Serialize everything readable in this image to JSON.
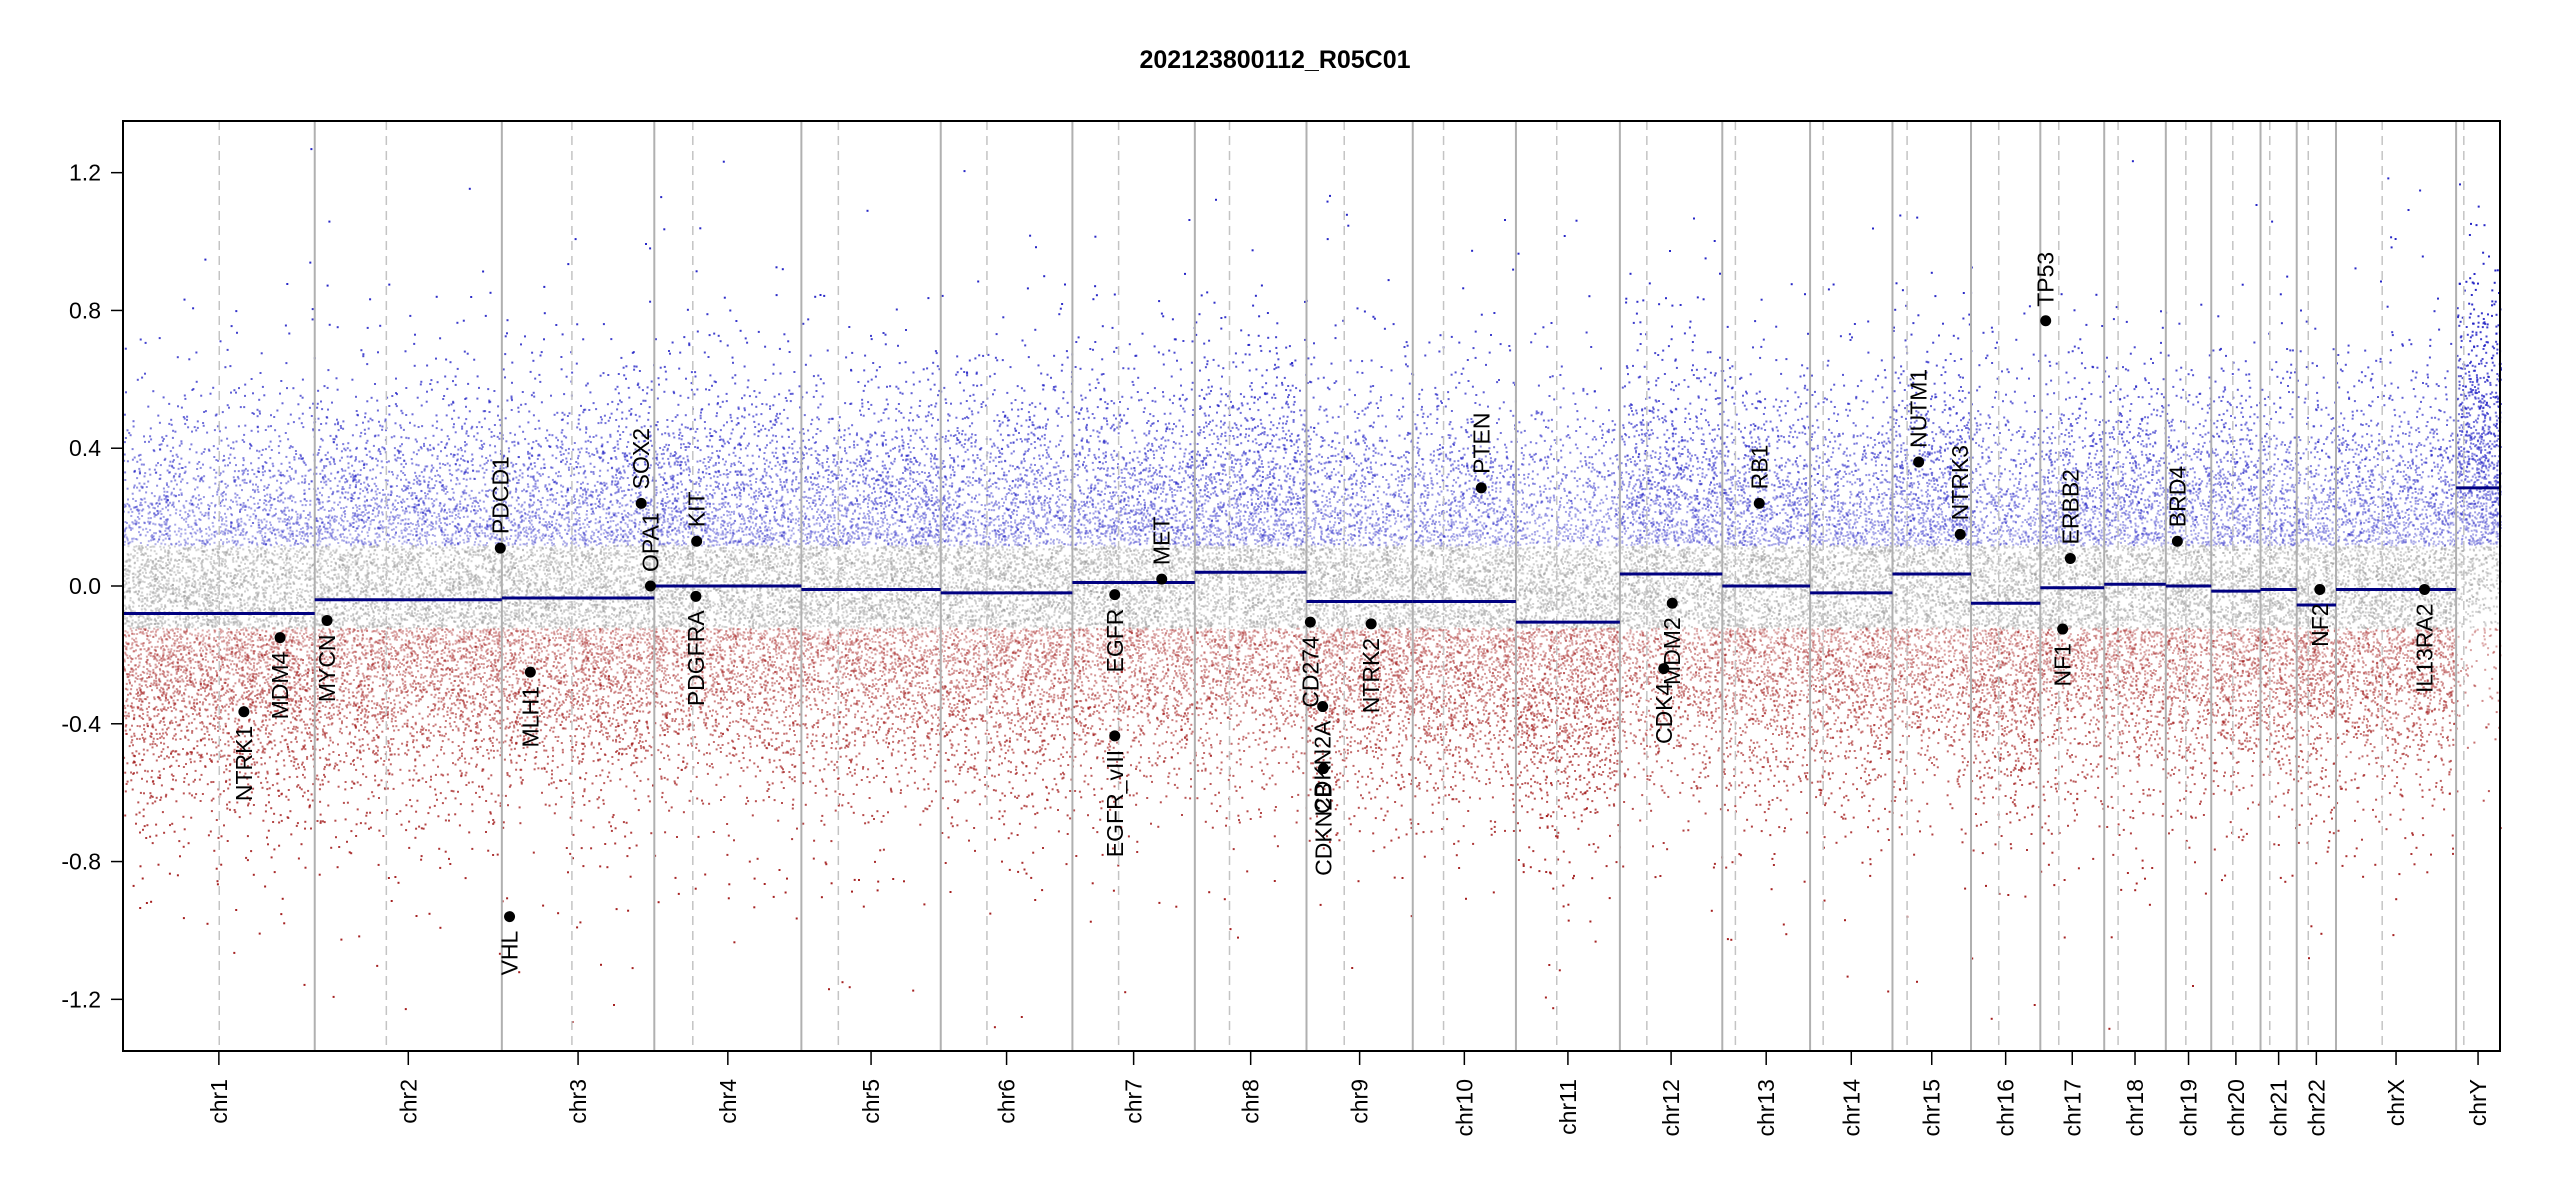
{
  "chart_data": {
    "type": "scatter",
    "title": "202123800112_R05C01",
    "xlabel": "",
    "ylabel": "",
    "ylim": [
      -1.35,
      1.35
    ],
    "yticks": [
      -1.2,
      -0.8,
      -0.4,
      0.0,
      0.4,
      0.8,
      1.2
    ],
    "ytick_labels": [
      "-1.2",
      "-0.8",
      "-0.4",
      "0.0",
      "0.4",
      "0.8",
      "1.2"
    ],
    "grid": false,
    "legend": "none",
    "colors": {
      "gain": "#1b1bc4",
      "loss": "#a01515",
      "neutral": "#9a9a9a",
      "segment": "#000080",
      "gene": "#000000"
    },
    "chromosomes": [
      {
        "name": "chr1",
        "size": 249,
        "centromere": 125,
        "segment": -0.08
      },
      {
        "name": "chr2",
        "size": 243,
        "centromere": 93,
        "segment": -0.04
      },
      {
        "name": "chr3",
        "size": 198,
        "centromere": 91,
        "segment": -0.035
      },
      {
        "name": "chr4",
        "size": 191,
        "centromere": 50,
        "segment": 0.0
      },
      {
        "name": "chr5",
        "size": 181,
        "centromere": 48,
        "segment": -0.01
      },
      {
        "name": "chr6",
        "size": 171,
        "centromere": 60,
        "segment": -0.02
      },
      {
        "name": "chr7",
        "size": 159,
        "centromere": 60,
        "segment": 0.01
      },
      {
        "name": "chr8",
        "size": 145,
        "centromere": 45,
        "segment": 0.04
      },
      {
        "name": "chr9",
        "size": 138,
        "centromere": 49,
        "segment": -0.045
      },
      {
        "name": "chr10",
        "size": 134,
        "centromere": 40,
        "segment": -0.045
      },
      {
        "name": "chr11",
        "size": 135,
        "centromere": 53,
        "segment": -0.105
      },
      {
        "name": "chr12",
        "size": 133,
        "centromere": 35,
        "segment": 0.035
      },
      {
        "name": "chr13",
        "size": 114,
        "centromere": 17,
        "segment": 0.0
      },
      {
        "name": "chr14",
        "size": 107,
        "centromere": 17,
        "segment": -0.02
      },
      {
        "name": "chr15",
        "size": 102,
        "centromere": 19,
        "segment": 0.035
      },
      {
        "name": "chr16",
        "size": 90,
        "centromere": 36,
        "segment": -0.05
      },
      {
        "name": "chr17",
        "size": 83,
        "centromere": 24,
        "segment": -0.005
      },
      {
        "name": "chr18",
        "size": 80,
        "centromere": 18,
        "segment": 0.005
      },
      {
        "name": "chr19",
        "size": 59,
        "centromere": 26,
        "segment": 0.0
      },
      {
        "name": "chr20",
        "size": 64,
        "centromere": 28,
        "segment": -0.015
      },
      {
        "name": "chr21",
        "size": 47,
        "centromere": 12,
        "segment": -0.01
      },
      {
        "name": "chr22",
        "size": 51,
        "centromere": 15,
        "segment": -0.055
      },
      {
        "name": "chrX",
        "size": 156,
        "centromere": 60,
        "segment": -0.01
      },
      {
        "name": "chrY",
        "size": 57,
        "centromere": 10,
        "segment": 0.285
      }
    ],
    "genes": [
      {
        "name": "NTRK1",
        "chr": "chr1",
        "pos": 157,
        "value": -0.365
      },
      {
        "name": "MDM4",
        "chr": "chr1",
        "pos": 204,
        "value": -0.15
      },
      {
        "name": "MYCN",
        "chr": "chr2",
        "pos": 16,
        "value": -0.1
      },
      {
        "name": "VHL",
        "chr": "chr3",
        "pos": 10,
        "value": -0.96
      },
      {
        "name": "PDCD1",
        "chr": "chr2",
        "pos": 241,
        "value": 0.11
      },
      {
        "name": "MLH1",
        "chr": "chr3",
        "pos": 37,
        "value": -0.25
      },
      {
        "name": "SOX2",
        "chr": "chr3",
        "pos": 181,
        "value": 0.24
      },
      {
        "name": "OPA1",
        "chr": "chr3",
        "pos": 193,
        "value": 0.0
      },
      {
        "name": "KIT",
        "chr": "chr4",
        "pos": 55,
        "value": 0.13
      },
      {
        "name": "PDGFRA",
        "chr": "chr4",
        "pos": 54,
        "value": -0.03
      },
      {
        "name": "EGFR",
        "chr": "chr7",
        "pos": 55,
        "value": -0.025
      },
      {
        "name": "EGFR_vIII",
        "chr": "chr7",
        "pos": 55,
        "value": -0.435
      },
      {
        "name": "MET",
        "chr": "chr7",
        "pos": 116,
        "value": 0.02
      },
      {
        "name": "CD274",
        "chr": "chr9",
        "pos": 5,
        "value": -0.105
      },
      {
        "name": "CDKN2A",
        "chr": "chr9",
        "pos": 21,
        "value": -0.35
      },
      {
        "name": "CDKN2B",
        "chr": "chr9",
        "pos": 22,
        "value": -0.53
      },
      {
        "name": "NTRK2",
        "chr": "chr9",
        "pos": 84,
        "value": -0.11
      },
      {
        "name": "PTEN",
        "chr": "chr10",
        "pos": 89,
        "value": 0.285
      },
      {
        "name": "MDM2",
        "chr": "chr12",
        "pos": 68,
        "value": -0.05
      },
      {
        "name": "CDK4",
        "chr": "chr12",
        "pos": 57,
        "value": -0.24
      },
      {
        "name": "RB1",
        "chr": "chr13",
        "pos": 48,
        "value": 0.24
      },
      {
        "name": "NUTM1",
        "chr": "chr15",
        "pos": 34,
        "value": 0.36
      },
      {
        "name": "NTRK3",
        "chr": "chr15",
        "pos": 88,
        "value": 0.15
      },
      {
        "name": "TP53",
        "chr": "chr17",
        "pos": 7,
        "value": 0.77
      },
      {
        "name": "ERBB2",
        "chr": "chr17",
        "pos": 39,
        "value": 0.08
      },
      {
        "name": "NF1",
        "chr": "chr17",
        "pos": 29,
        "value": -0.125
      },
      {
        "name": "BRD4",
        "chr": "chr19",
        "pos": 15,
        "value": 0.13
      },
      {
        "name": "NF2",
        "chr": "chr22",
        "pos": 30,
        "value": -0.01
      },
      {
        "name": "IL13RA2",
        "chr": "chrX",
        "pos": 115,
        "value": -0.01
      }
    ]
  }
}
